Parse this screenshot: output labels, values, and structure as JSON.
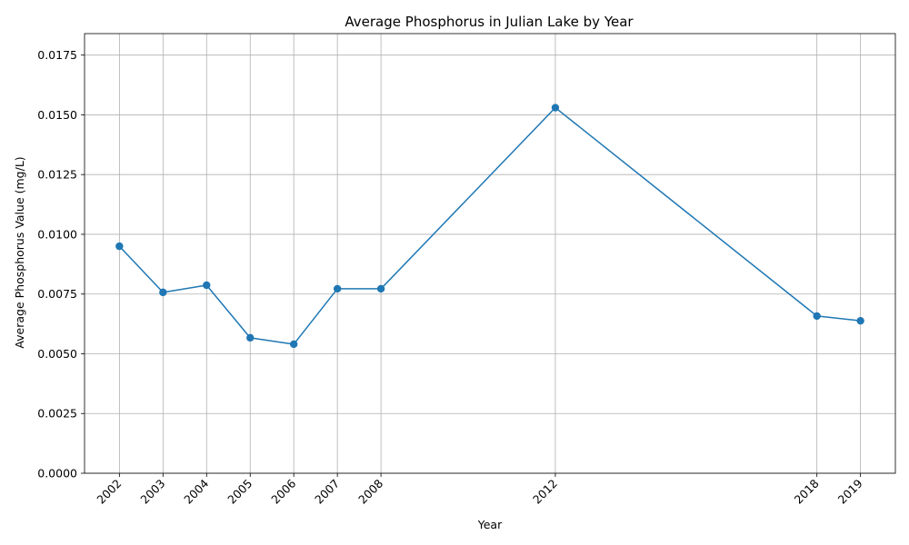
{
  "chart_data": {
    "type": "line",
    "title": "Average Phosphorus in Julian Lake by Year",
    "xlabel": "Year",
    "ylabel": "Average Phosphorus Value (mg/L)",
    "x": [
      2002,
      2003,
      2004,
      2005,
      2006,
      2007,
      2008,
      2012,
      2018,
      2019
    ],
    "x_tick_labels": [
      "2002",
      "2003",
      "2004",
      "2005",
      "2006",
      "2007",
      "2008",
      "2012",
      "2018",
      "2019"
    ],
    "series": [
      {
        "values": [
          0.0095,
          0.00757,
          0.00787,
          0.00567,
          0.0054,
          0.00772,
          0.00772,
          0.0153,
          0.00658,
          0.00638
        ],
        "color": "#1f77b4",
        "marker": "circle"
      }
    ],
    "ylim": [
      0,
      0.0184
    ],
    "xlim": [
      2001.2,
      2019.8
    ],
    "y_ticks": [
      0.0,
      0.0025,
      0.005,
      0.0075,
      0.01,
      0.0125,
      0.015,
      0.0175
    ],
    "y_tick_labels": [
      "0.0000",
      "0.0025",
      "0.0050",
      "0.0075",
      "0.0100",
      "0.0125",
      "0.0150",
      "0.0175"
    ],
    "grid": true,
    "x_tick_rotation": "45 degrees"
  }
}
